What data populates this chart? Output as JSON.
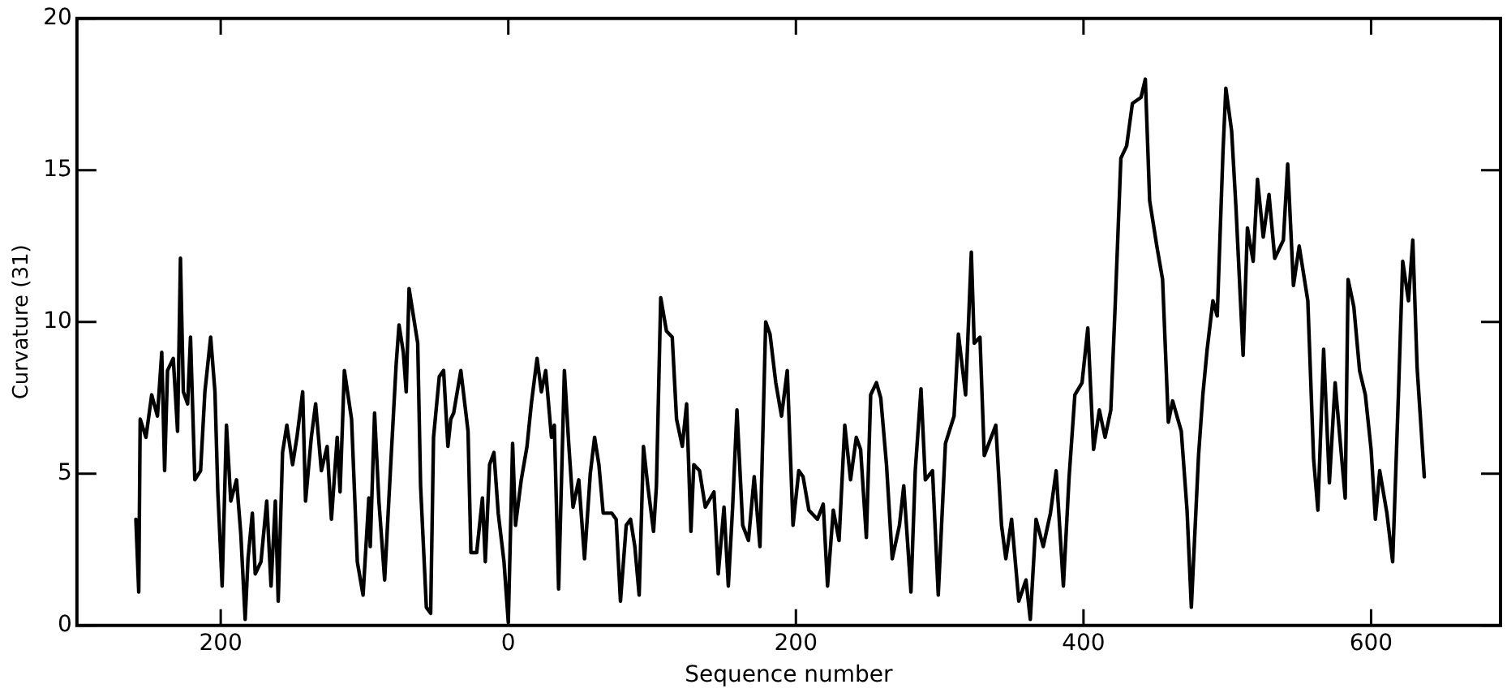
{
  "chart_data": {
    "type": "line",
    "xlabel": "Sequence number",
    "ylabel": "Curvature (31)",
    "xlim": [
      -300,
      690
    ],
    "ylim": [
      0,
      20
    ],
    "xticks": [
      {
        "value": -200,
        "label": "200"
      },
      0,
      200,
      400,
      600
    ],
    "yticks": [
      0,
      5,
      10,
      15,
      20
    ],
    "grid": false,
    "legend": false,
    "marker": "none",
    "line_style": "solid",
    "series": [
      {
        "color": "#000000",
        "x": [
          -259,
          -257,
          -256,
          -252,
          -248,
          -244,
          -241,
          -239,
          -237,
          -233,
          -230,
          -228,
          -226,
          -223,
          -221,
          -218,
          -214,
          -211,
          -207,
          -204,
          -202,
          -199,
          -196,
          -193,
          -189,
          -186,
          -183,
          -181,
          -178,
          -176,
          -172,
          -168,
          -165,
          -162,
          -160,
          -157,
          -154,
          -150,
          -147,
          -143,
          -141,
          -137,
          -134,
          -130,
          -126,
          -123,
          -119,
          -117,
          -114,
          -109,
          -105,
          -101,
          -97,
          -96,
          -93,
          -90,
          -86,
          -82,
          -78,
          -76,
          -73,
          -71,
          -69,
          -63,
          -61,
          -57,
          -54,
          -52,
          -48,
          -45,
          -42,
          -40,
          -38,
          -33,
          -28,
          -26,
          -22,
          -18,
          -16,
          -13,
          -10,
          -7,
          -3,
          0,
          3,
          5,
          9,
          13,
          16,
          20,
          23,
          26,
          30,
          32,
          35,
          39,
          42,
          45,
          49,
          53,
          57,
          60,
          63,
          66,
          72,
          75,
          78,
          82,
          85,
          88,
          91,
          94,
          97,
          101,
          103,
          106,
          110,
          114,
          117,
          121,
          124,
          127,
          129,
          133,
          137,
          143,
          146,
          150,
          153,
          156,
          159,
          163,
          167,
          171,
          175,
          179,
          182,
          186,
          190,
          194,
          198,
          202,
          205,
          209,
          215,
          219,
          222,
          226,
          230,
          234,
          238,
          242,
          245,
          249,
          252,
          256,
          259,
          263,
          267,
          272,
          275,
          280,
          283,
          287,
          290,
          295,
          299,
          304,
          310,
          313,
          318,
          322,
          324,
          328,
          331,
          339,
          343,
          346,
          350,
          355,
          360,
          363,
          367,
          372,
          377,
          381,
          386,
          390,
          394,
          399,
          403,
          407,
          411,
          415,
          419,
          422,
          426,
          430,
          434,
          440,
          443,
          446,
          451,
          455,
          459,
          462,
          468,
          472,
          475,
          480,
          483,
          486,
          490,
          493,
          497,
          499,
          503,
          506,
          511,
          514,
          518,
          521,
          525,
          529,
          533,
          539,
          542,
          546,
          550,
          556,
          560,
          563,
          567,
          571,
          575,
          579,
          582,
          584,
          588,
          592,
          596,
          600,
          603,
          606,
          611,
          615,
          619,
          622,
          626,
          629,
          632,
          637
        ],
        "values": [
          3.5,
          1.1,
          6.8,
          6.2,
          7.6,
          6.9,
          9.0,
          5.1,
          8.4,
          8.8,
          6.4,
          12.1,
          7.7,
          7.3,
          9.5,
          4.8,
          5.1,
          7.7,
          9.5,
          7.7,
          4.4,
          1.3,
          6.6,
          4.1,
          4.8,
          3.0,
          0.2,
          2.2,
          3.7,
          1.7,
          2.1,
          4.1,
          1.3,
          4.1,
          0.8,
          5.7,
          6.6,
          5.3,
          6.2,
          7.7,
          4.1,
          6.2,
          7.3,
          5.1,
          5.9,
          3.5,
          6.2,
          4.4,
          8.4,
          6.8,
          2.1,
          1.0,
          4.2,
          2.6,
          7.0,
          4.1,
          1.5,
          5.1,
          8.6,
          9.9,
          9.0,
          7.7,
          11.1,
          9.3,
          4.6,
          0.6,
          0.4,
          6.2,
          8.2,
          8.4,
          5.9,
          6.8,
          7.0,
          8.4,
          6.4,
          2.4,
          2.4,
          4.2,
          2.1,
          5.3,
          5.7,
          3.7,
          2.1,
          0.1,
          6.0,
          3.3,
          4.8,
          5.9,
          7.3,
          8.8,
          7.7,
          8.4,
          6.2,
          6.6,
          1.2,
          8.4,
          6.0,
          3.9,
          4.8,
          2.2,
          5.0,
          6.2,
          5.3,
          3.7,
          3.7,
          3.5,
          0.8,
          3.3,
          3.5,
          2.6,
          1.0,
          5.9,
          4.6,
          3.1,
          4.6,
          10.8,
          9.7,
          9.5,
          6.8,
          5.9,
          7.3,
          3.1,
          5.3,
          5.1,
          3.9,
          4.4,
          1.7,
          3.9,
          1.3,
          3.9,
          7.1,
          3.3,
          2.8,
          4.9,
          2.6,
          10.0,
          9.6,
          8.0,
          6.9,
          8.4,
          3.3,
          5.1,
          4.9,
          3.8,
          3.5,
          4.0,
          1.3,
          3.8,
          2.8,
          6.6,
          4.8,
          6.2,
          5.8,
          2.9,
          7.6,
          8.0,
          7.5,
          5.3,
          2.2,
          3.3,
          4.6,
          1.1,
          5.1,
          7.8,
          4.8,
          5.1,
          1.0,
          6.0,
          6.9,
          9.6,
          7.6,
          12.3,
          9.3,
          9.5,
          5.6,
          6.6,
          3.3,
          2.2,
          3.5,
          0.8,
          1.5,
          0.2,
          3.5,
          2.6,
          3.7,
          5.1,
          1.3,
          4.9,
          7.6,
          8.0,
          9.8,
          5.8,
          7.1,
          6.2,
          7.1,
          10.5,
          15.4,
          15.8,
          17.2,
          17.4,
          18.0,
          14.0,
          12.5,
          11.4,
          6.7,
          7.4,
          6.4,
          3.8,
          0.6,
          5.6,
          7.6,
          9.1,
          10.7,
          10.2,
          15.6,
          17.7,
          16.3,
          13.8,
          8.9,
          13.1,
          12.0,
          14.7,
          12.8,
          14.2,
          12.1,
          12.7,
          15.2,
          11.2,
          12.5,
          10.7,
          5.5,
          3.8,
          9.1,
          4.7,
          8.0,
          5.8,
          4.2,
          11.4,
          10.5,
          8.4,
          7.6,
          5.8,
          3.5,
          5.1,
          3.7,
          2.1,
          7.6,
          12.0,
          10.7,
          12.7,
          8.5,
          4.9
        ]
      }
    ]
  }
}
